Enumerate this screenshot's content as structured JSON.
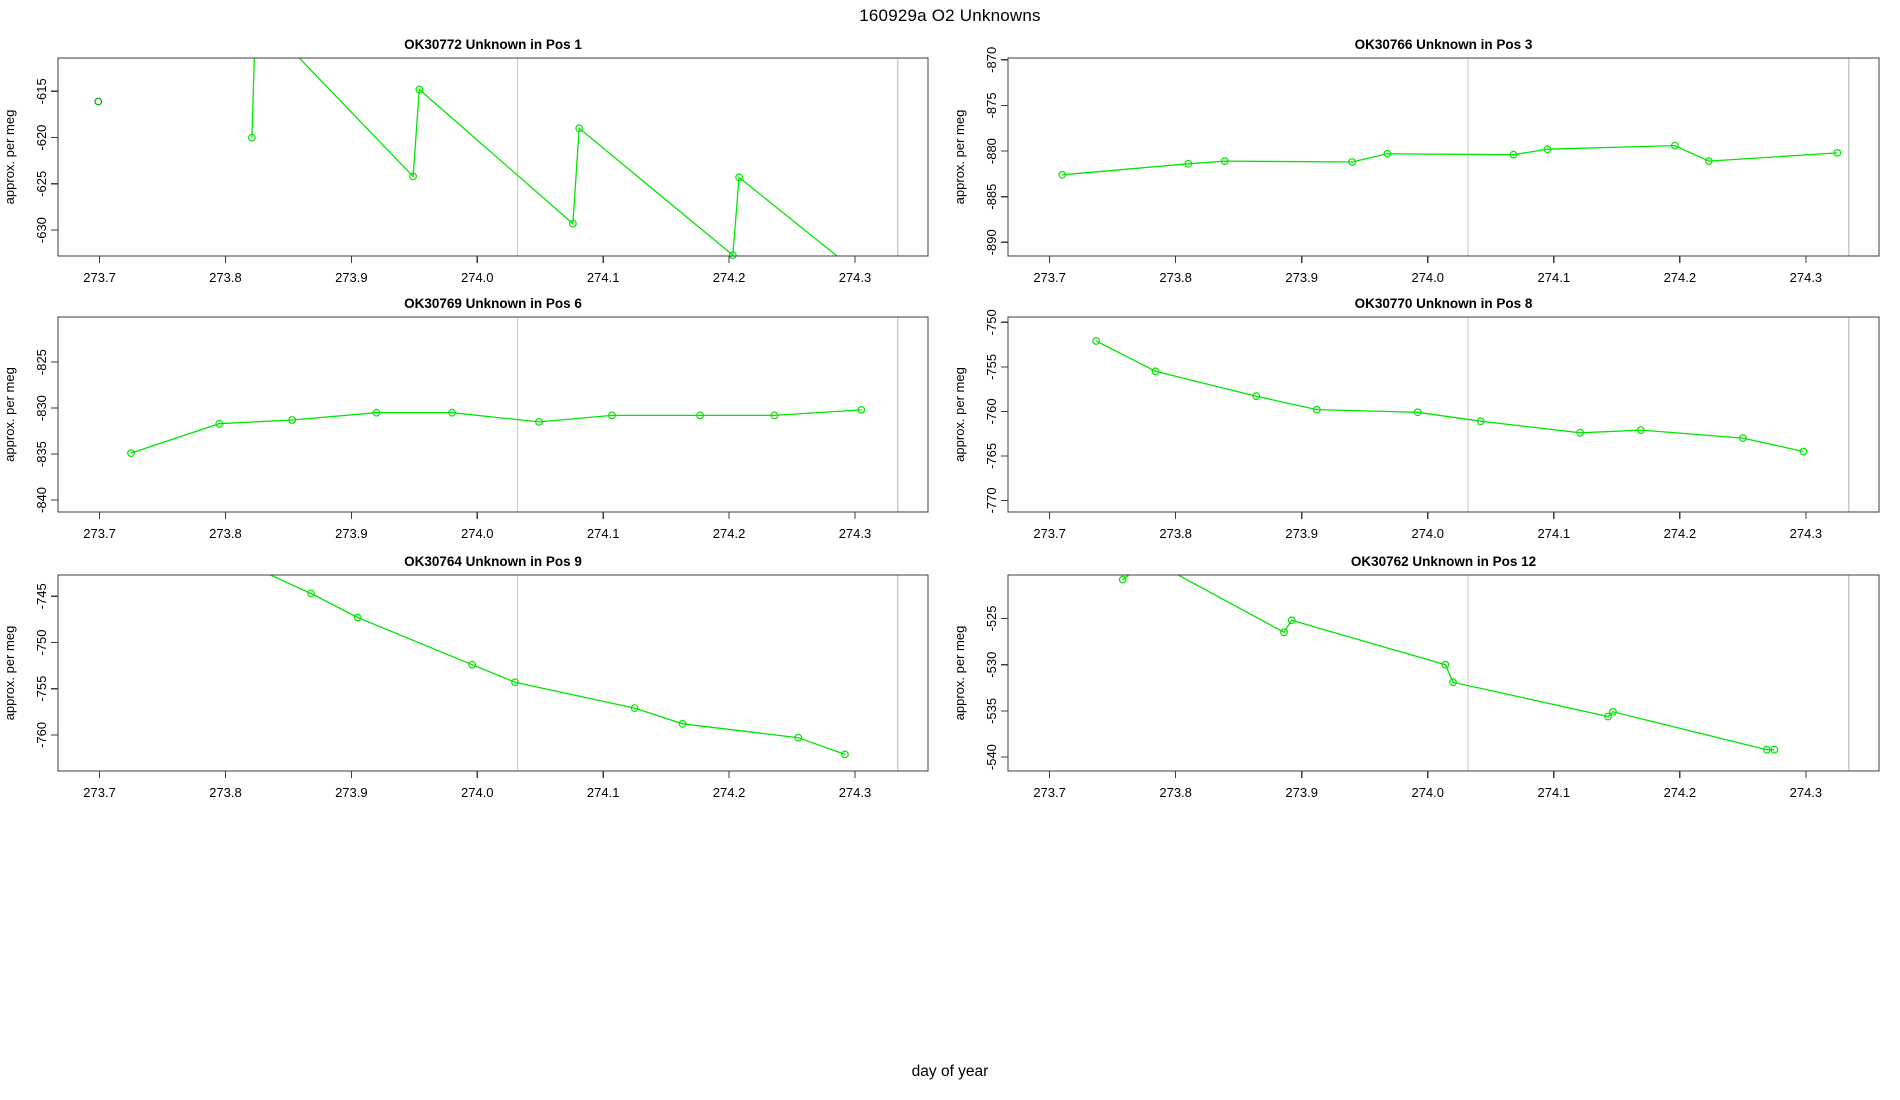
{
  "title": "160929a  O2 Unknowns",
  "xlabel": "day of year",
  "axis": {
    "xticks": [
      273.7,
      273.8,
      273.9,
      274.0,
      274.1,
      274.2,
      274.3
    ],
    "xlim": [
      273.667,
      274.358
    ],
    "vlines": [
      274.032,
      274.334
    ],
    "ylabel": "approx. per meg"
  },
  "colors": {
    "series_green": "#00e600",
    "isolated_dark_green": "#00a800",
    "vline_gray": "#c9c9c9",
    "box_stroke": "#3c3c3c",
    "text": "#000000"
  },
  "chart_data": [
    {
      "type": "line",
      "id": "ok30772",
      "title": "OK30772   Unknown in Pos 1",
      "ylabel": "approx. per meg",
      "ylim": [
        -632.8,
        -611.4
      ],
      "yticks": [
        -630,
        -625,
        -620,
        -615
      ],
      "xlim": [
        273.667,
        274.358
      ],
      "xticks": [
        273.7,
        273.8,
        273.9,
        274.0,
        274.1,
        274.2,
        274.3
      ],
      "legend": "none",
      "grid": false,
      "series": [
        {
          "name": "isolated-point",
          "color": "#00a800",
          "draw_line": false,
          "x": [
            273.699
          ],
          "y": [
            -616.1
          ],
          "offscale": [
            false
          ]
        },
        {
          "name": "run-trace",
          "color": "#00e600",
          "draw_line": true,
          "x": [
            273.821,
            273.824,
            273.949,
            273.954,
            274.076,
            274.081,
            274.203,
            274.208,
            274.315
          ],
          "y": [
            -620.0,
            -606.5,
            -624.2,
            -614.8,
            -629.3,
            -619.0,
            -632.7,
            -624.3,
            -636.0
          ],
          "offscale": [
            false,
            true,
            false,
            false,
            false,
            false,
            false,
            false,
            true
          ]
        }
      ]
    },
    {
      "type": "line",
      "id": "ok30766",
      "title": "OK30766   Unknown in Pos 3",
      "ylabel": "approx. per meg",
      "ylim": [
        -891.5,
        -869.8
      ],
      "yticks": [
        -890,
        -885,
        -880,
        -875,
        -870
      ],
      "xlim": [
        273.667,
        274.358
      ],
      "xticks": [
        273.7,
        273.8,
        273.9,
        274.0,
        274.1,
        274.2,
        274.3
      ],
      "legend": "none",
      "grid": false,
      "series": [
        {
          "name": "run-trace",
          "color": "#00e600",
          "draw_line": true,
          "x": [
            273.71,
            273.81,
            273.839,
            273.94,
            273.968,
            274.068,
            274.095,
            274.196,
            274.223,
            274.325
          ],
          "y": [
            -882.6,
            -881.4,
            -881.1,
            -881.2,
            -880.3,
            -880.4,
            -879.8,
            -879.4,
            -881.1,
            -880.2
          ],
          "offscale": [
            false,
            false,
            false,
            false,
            false,
            false,
            false,
            false,
            false,
            false
          ]
        }
      ]
    },
    {
      "type": "line",
      "id": "ok30769",
      "title": "OK30769   Unknown in Pos 6",
      "ylabel": "approx. per meg",
      "ylim": [
        -841.3,
        -820.1
      ],
      "yticks": [
        -840,
        -835,
        -830,
        -825
      ],
      "xlim": [
        273.667,
        274.358
      ],
      "xticks": [
        273.7,
        273.8,
        273.9,
        274.0,
        274.1,
        274.2,
        274.3
      ],
      "legend": "none",
      "grid": false,
      "series": [
        {
          "name": "run-trace",
          "color": "#00e600",
          "draw_line": true,
          "x": [
            273.725,
            273.795,
            273.853,
            273.92,
            273.98,
            274.049,
            274.107,
            274.177,
            274.236,
            274.305
          ],
          "y": [
            -834.9,
            -831.7,
            -831.3,
            -830.5,
            -830.5,
            -831.5,
            -830.8,
            -830.8,
            -830.8,
            -830.2
          ],
          "offscale": [
            false,
            false,
            false,
            false,
            false,
            false,
            false,
            false,
            false,
            false
          ]
        }
      ]
    },
    {
      "type": "line",
      "id": "ok30770",
      "title": "OK30770   Unknown in Pos 8",
      "ylabel": "approx. per meg",
      "ylim": [
        -771.3,
        -749.4
      ],
      "yticks": [
        -770,
        -765,
        -760,
        -755,
        -750
      ],
      "xlim": [
        273.667,
        274.358
      ],
      "xticks": [
        273.7,
        273.8,
        273.9,
        274.0,
        274.1,
        274.2,
        274.3
      ],
      "legend": "none",
      "grid": false,
      "series": [
        {
          "name": "run-trace",
          "color": "#00e600",
          "draw_line": true,
          "x": [
            273.737,
            273.784,
            273.864,
            273.912,
            273.992,
            274.042,
            274.121,
            274.169,
            274.25,
            274.298
          ],
          "y": [
            -752.1,
            -755.5,
            -758.3,
            -759.8,
            -760.1,
            -761.1,
            -762.4,
            -762.1,
            -763.0,
            -764.5
          ],
          "offscale": [
            false,
            false,
            false,
            false,
            false,
            false,
            false,
            false,
            false,
            false
          ]
        }
      ]
    },
    {
      "type": "line",
      "id": "ok30764",
      "title": "OK30764   Unknown in Pos 9",
      "ylabel": "approx. per meg",
      "ylim": [
        -763.9,
        -742.7
      ],
      "yticks": [
        -760,
        -755,
        -750,
        -745
      ],
      "xlim": [
        273.667,
        274.358
      ],
      "xticks": [
        273.7,
        273.8,
        273.9,
        274.0,
        274.1,
        274.2,
        274.3
      ],
      "legend": "none",
      "grid": false,
      "series": [
        {
          "name": "run-trace",
          "color": "#00e600",
          "draw_line": true,
          "x": [
            273.8,
            273.868,
            273.905,
            273.996,
            274.03,
            274.125,
            274.163,
            274.255,
            274.292
          ],
          "y": [
            -740.5,
            -744.7,
            -747.3,
            -752.4,
            -754.3,
            -757.1,
            -758.8,
            -760.3,
            -762.1
          ],
          "offscale": [
            true,
            false,
            false,
            false,
            false,
            false,
            false,
            false,
            false
          ]
        }
      ]
    },
    {
      "type": "line",
      "id": "ok30762",
      "title": "OK30762   Unknown in Pos 12",
      "ylabel": "approx. per meg",
      "ylim": [
        -541.5,
        -520.3
      ],
      "yticks": [
        -540,
        -535,
        -530,
        -525
      ],
      "xlim": [
        273.667,
        274.358
      ],
      "xticks": [
        273.7,
        273.8,
        273.9,
        274.0,
        274.1,
        274.2,
        274.3
      ],
      "legend": "none",
      "grid": false,
      "series": [
        {
          "name": "run-trace",
          "color": "#00e600",
          "draw_line": true,
          "x": [
            273.758,
            273.779,
            273.886,
            273.892,
            274.014,
            274.02,
            274.143,
            274.147,
            274.269,
            274.275
          ],
          "y": [
            -520.8,
            -518.6,
            -526.5,
            -525.2,
            -530.0,
            -531.9,
            -535.6,
            -535.1,
            -539.2,
            -539.2
          ],
          "offscale": [
            false,
            true,
            false,
            false,
            false,
            false,
            false,
            false,
            false,
            false
          ]
        }
      ]
    }
  ]
}
